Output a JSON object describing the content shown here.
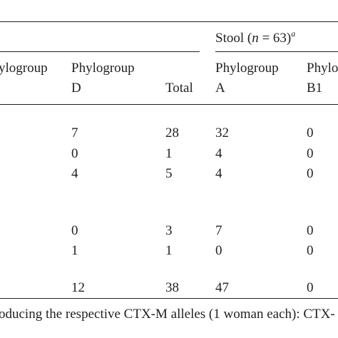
{
  "header": {
    "stool_prefix": "Stool (",
    "stool_n": "n",
    "stool_eq": " = 63)",
    "stool_sup": "a",
    "col_phylo_left": "ylogroup",
    "col_phylo_d_line1": "Phylogroup",
    "col_phylo_d_line2": "D",
    "col_total": "Total",
    "col_phylo_a_line1": "Phylogroup",
    "col_phylo_a_line2": "A",
    "col_phylo_b1_line1": "Phylo",
    "col_phylo_b1_line2": "B1"
  },
  "rows": [
    {
      "d": "7",
      "total": "28",
      "a": "32",
      "b1": "0"
    },
    {
      "d": "0",
      "total": "1",
      "a": "4",
      "b1": "0"
    },
    {
      "d": "4",
      "total": "5",
      "a": "4",
      "b1": "0"
    },
    {
      "d": "0",
      "total": "3",
      "a": "7",
      "b1": "0"
    },
    {
      "d": "1",
      "total": "1",
      "a": "0",
      "b1": "0"
    },
    {
      "d": "12",
      "total": "38",
      "a": "47",
      "b1": "0"
    }
  ],
  "footnote": "oducing the respective CTX-M alleles (1 woman each): CTX-"
}
